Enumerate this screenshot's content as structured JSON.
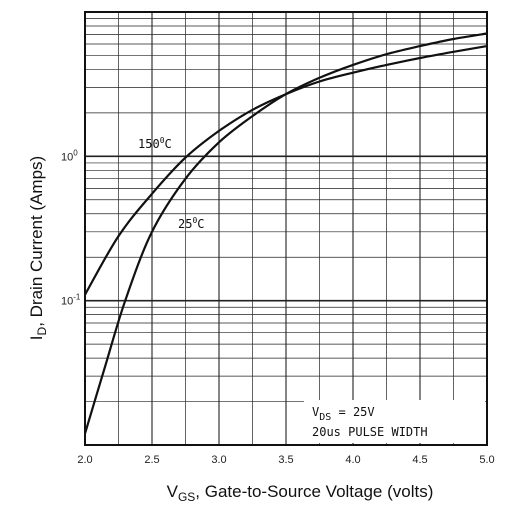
{
  "chart_data": {
    "type": "line",
    "title": "",
    "xlabel": "V_GS, Gate-to-Source Voltage (volts)",
    "xlabel_main": "V",
    "xlabel_sub": "GS",
    "xlabel_rest": ", Gate-to-Source Voltage (volts)",
    "ylabel": "I_D, Drain Current (Amps)",
    "ylabel_main": "I",
    "ylabel_sub": "D",
    "ylabel_rest": ", Drain Current (Amps)",
    "x_ticks": [
      "2.0",
      "2.5",
      "3.0",
      "3.5",
      "4.0",
      "4.5",
      "5.0"
    ],
    "y_ticks": [
      {
        "value": 1,
        "base": "10",
        "exp": "0"
      },
      {
        "value": 0.1,
        "base": "10",
        "exp": "-1"
      }
    ],
    "xlim": [
      2.0,
      5.0
    ],
    "ylim": [
      0.01,
      10
    ],
    "y_scale": "log",
    "grid": true,
    "series": [
      {
        "name": "150°C",
        "label_main": "150",
        "label_sup": "0",
        "label_unit": "C",
        "x": [
          2.0,
          2.25,
          2.5,
          2.75,
          3.0,
          3.25,
          3.5,
          3.75,
          4.0,
          4.25,
          4.5,
          4.75,
          5.0
        ],
        "y": [
          0.11,
          0.28,
          0.55,
          0.98,
          1.5,
          2.1,
          2.7,
          3.3,
          3.8,
          4.3,
          4.8,
          5.3,
          5.8
        ]
      },
      {
        "name": "25°C",
        "label_main": "25",
        "label_sup": "0",
        "label_unit": "C",
        "x": [
          2.0,
          2.15,
          2.3,
          2.5,
          2.75,
          3.0,
          3.25,
          3.5,
          3.75,
          4.0,
          4.25,
          4.5,
          4.75,
          5.0
        ],
        "y": [
          0.012,
          0.035,
          0.1,
          0.3,
          0.7,
          1.25,
          1.9,
          2.7,
          3.5,
          4.3,
          5.1,
          5.8,
          6.5,
          7.1
        ]
      }
    ],
    "annotations": [
      {
        "main": "V",
        "sub": "DS",
        "rest": " = 25V"
      },
      {
        "main": "20us PULSE WIDTH"
      }
    ]
  }
}
